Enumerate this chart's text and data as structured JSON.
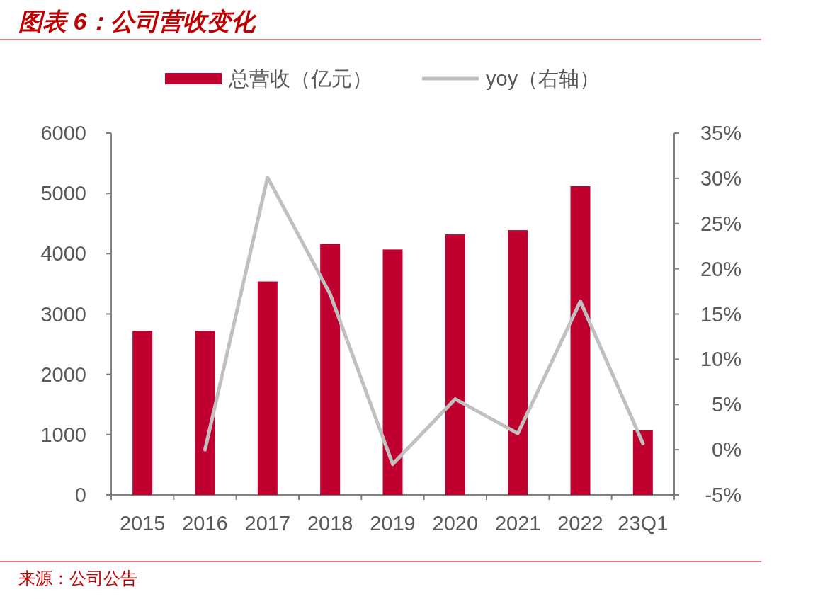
{
  "chart_data": {
    "type": "bar",
    "title": "图表 6：公司营收变化",
    "categories": [
      "2015",
      "2016",
      "2017",
      "2018",
      "2019",
      "2020",
      "2021",
      "2022",
      "23Q1"
    ],
    "series": [
      {
        "name": "总营收（亿元）",
        "color": "#c0002f",
        "values": [
          2720,
          2720,
          3540,
          4160,
          4070,
          4320,
          4390,
          5120,
          1070
        ]
      },
      {
        "name": "yoy（右轴）",
        "type": "line",
        "axis": "y2",
        "color": "#c0c0c0",
        "values": [
          null,
          0.0,
          30.1,
          17.2,
          -1.6,
          5.6,
          1.8,
          16.4,
          0.7
        ]
      }
    ],
    "ylim": [
      0,
      6000
    ],
    "yticks": [
      0,
      1000,
      2000,
      3000,
      4000,
      5000,
      6000
    ],
    "y2lim": [
      -5,
      35
    ],
    "y2ticks": [
      {
        "value": -5,
        "label": "-5%"
      },
      {
        "value": 0,
        "label": "0%"
      },
      {
        "value": 5,
        "label": "5%"
      },
      {
        "value": 10,
        "label": "10%"
      },
      {
        "value": 15,
        "label": "15%"
      },
      {
        "value": 20,
        "label": "20%"
      },
      {
        "value": 25,
        "label": "25%"
      },
      {
        "value": 30,
        "label": "30%"
      },
      {
        "value": 35,
        "label": "35%"
      }
    ],
    "legend": "top",
    "annotations": [
      "来源：公司公告"
    ]
  }
}
